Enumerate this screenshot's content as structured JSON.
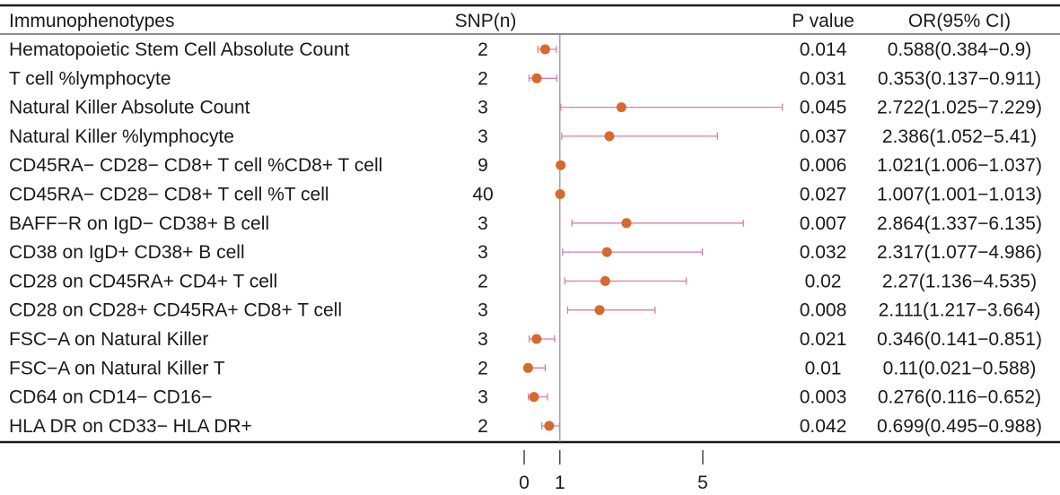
{
  "chart_data": {
    "type": "forest",
    "headers": {
      "label": "Immunophenotypes",
      "snp": "SNP(n)",
      "p": "P value",
      "or": "OR(95% CI)"
    },
    "rows": [
      {
        "name": "Hematopoietic Stem Cell Absolute Count",
        "snp": "2",
        "p": "0.014",
        "or_text": "0.588(0.384−0.9)",
        "or": 0.588,
        "lo": 0.384,
        "hi": 0.9
      },
      {
        "name": "T cell %lymphocyte",
        "snp": "2",
        "p": "0.031",
        "or_text": "0.353(0.137−0.911)",
        "or": 0.353,
        "lo": 0.137,
        "hi": 0.911
      },
      {
        "name": "Natural Killer Absolute Count",
        "snp": "3",
        "p": "0.045",
        "or_text": "2.722(1.025−7.229)",
        "or": 2.722,
        "lo": 1.025,
        "hi": 7.229
      },
      {
        "name": "Natural Killer %lymphocyte",
        "snp": "3",
        "p": "0.037",
        "or_text": "2.386(1.052−5.41)",
        "or": 2.386,
        "lo": 1.052,
        "hi": 5.41
      },
      {
        "name": "CD45RA− CD28− CD8+ T cell %CD8+ T cell",
        "snp": "9",
        "p": "0.006",
        "or_text": "1.021(1.006−1.037)",
        "or": 1.021,
        "lo": 1.006,
        "hi": 1.037
      },
      {
        "name": "CD45RA− CD28− CD8+ T cell %T cell",
        "snp": "40",
        "p": "0.027",
        "or_text": "1.007(1.001−1.013)",
        "or": 1.007,
        "lo": 1.001,
        "hi": 1.013
      },
      {
        "name": "BAFF−R on IgD− CD38+ B cell",
        "snp": "3",
        "p": "0.007",
        "or_text": "2.864(1.337−6.135)",
        "or": 2.864,
        "lo": 1.337,
        "hi": 6.135
      },
      {
        "name": "CD38 on IgD+ CD38+ B cell",
        "snp": "3",
        "p": "0.032",
        "or_text": "2.317(1.077−4.986)",
        "or": 2.317,
        "lo": 1.077,
        "hi": 4.986
      },
      {
        "name": "CD28 on CD45RA+ CD4+ T cell",
        "snp": "2",
        "p": "0.02",
        "or_text": "2.27(1.136−4.535)",
        "or": 2.27,
        "lo": 1.136,
        "hi": 4.535
      },
      {
        "name": "CD28 on CD28+ CD45RA+ CD8+ T cell",
        "snp": "3",
        "p": "0.008",
        "or_text": "2.111(1.217−3.664)",
        "or": 2.111,
        "lo": 1.217,
        "hi": 3.664
      },
      {
        "name": "FSC−A on Natural Killer",
        "snp": "3",
        "p": "0.021",
        "or_text": "0.346(0.141−0.851)",
        "or": 0.346,
        "lo": 0.141,
        "hi": 0.851
      },
      {
        "name": "FSC−A on Natural Killer T",
        "snp": "2",
        "p": "0.01",
        "or_text": "0.11(0.021−0.588)",
        "or": 0.11,
        "lo": 0.021,
        "hi": 0.588
      },
      {
        "name": "CD64 on CD14− CD16−",
        "snp": "3",
        "p": "0.003",
        "or_text": "0.276(0.116−0.652)",
        "or": 0.276,
        "lo": 0.116,
        "hi": 0.652
      },
      {
        "name": "HLA DR on CD33− HLA DR+",
        "snp": "2",
        "p": "0.042",
        "or_text": "0.699(0.495−0.988)",
        "or": 0.699,
        "lo": 0.495,
        "hi": 0.988
      }
    ],
    "x_ticks": [
      0,
      1,
      5
    ],
    "x_tick_labels": [
      "0",
      "1",
      "5"
    ],
    "reference_line": 1,
    "xlim": [
      0,
      7.229
    ],
    "colors": {
      "point": "#d6692b",
      "ci": "#d97bb0",
      "reference": "#8c8c8c",
      "rule": "#1a1a1a"
    }
  }
}
